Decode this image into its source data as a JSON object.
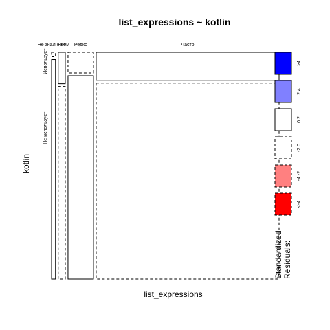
{
  "chart_data": {
    "type": "mosaic",
    "title": "list_expressions ~ kotlin",
    "xlabel": "list_expressions",
    "ylabel": "kotlin",
    "x_categories": [
      "Не знал о нем",
      "Нет",
      "Редко",
      "Часто"
    ],
    "y_categories": [
      "Использует",
      "Не использует"
    ],
    "column_widths": [
      0.018,
      0.032,
      0.116,
      0.834
    ],
    "column_top_fraction": [
      0.02,
      0.14,
      0.092,
      0.125
    ],
    "cells": [
      {
        "x": "Не знал о нем",
        "y": "Использует",
        "residual_bin": "-2:0"
      },
      {
        "x": "Не знал о нем",
        "y": "Не использует",
        "residual_bin": "0:2"
      },
      {
        "x": "Нет",
        "y": "Использует",
        "residual_bin": "0:2"
      },
      {
        "x": "Нет",
        "y": "Не использует",
        "residual_bin": "-2:0"
      },
      {
        "x": "Редко",
        "y": "Использует",
        "residual_bin": "-2:0"
      },
      {
        "x": "Редко",
        "y": "Не использует",
        "residual_bin": "0:2"
      },
      {
        "x": "Часто",
        "y": "Использует",
        "residual_bin": "0:2"
      },
      {
        "x": "Часто",
        "y": "Не использует",
        "residual_bin": "-2:0"
      }
    ],
    "legend": {
      "title_lines": [
        "Standardized",
        "Residuals:"
      ],
      "placement": "right",
      "bins": [
        {
          "label": ">4",
          "color": "#0000ff",
          "dashed": false
        },
        {
          "label": "2:4",
          "color": "#8080ff",
          "dashed": false
        },
        {
          "label": "0:2",
          "color": "#ffffff",
          "dashed": false
        },
        {
          "label": "-2:0",
          "color": "#ffffff",
          "dashed": true
        },
        {
          "label": "-4:-2",
          "color": "#ff8080",
          "dashed": true
        },
        {
          "label": "<-4",
          "color": "#ff0000",
          "dashed": true
        }
      ]
    }
  }
}
